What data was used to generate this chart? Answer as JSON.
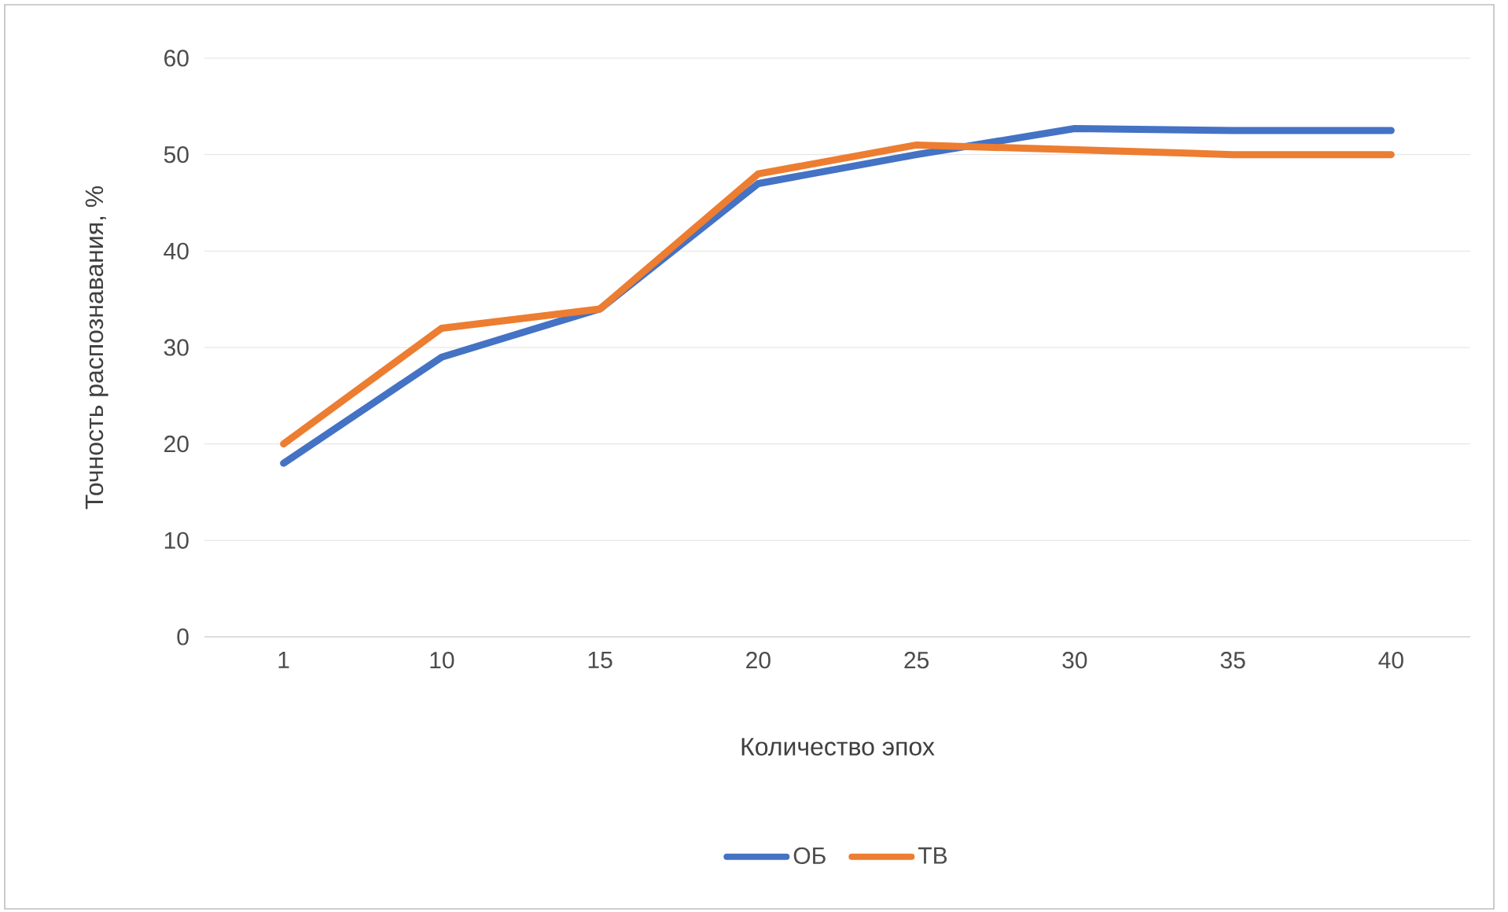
{
  "chart_data": {
    "type": "line",
    "xlabel": "Количество эпох",
    "ylabel": "Точность распознавания, %",
    "categories": [
      "1",
      "10",
      "15",
      "20",
      "25",
      "30",
      "35",
      "40"
    ],
    "series": [
      {
        "name": "ОБ",
        "color": "#4472c4",
        "values": [
          18,
          29,
          34,
          47,
          50,
          52.7,
          52.5,
          52.5
        ]
      },
      {
        "name": "ТВ",
        "color": "#ed7d31",
        "values": [
          20,
          32,
          34,
          48,
          51,
          50.5,
          50,
          50
        ]
      }
    ],
    "ylim": [
      0,
      60
    ],
    "yticks": [
      0,
      10,
      20,
      30,
      40,
      50,
      60
    ],
    "grid": "y",
    "legend": "bottom"
  }
}
